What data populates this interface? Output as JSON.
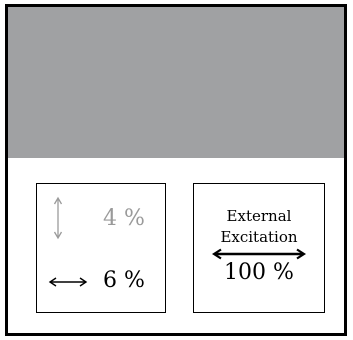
{
  "panel_left": {
    "vertical_percent": "4 %",
    "horizontal_percent": "6 %"
  },
  "panel_right": {
    "title_line1": "External",
    "title_line2": "Excitation",
    "percent": "100 %"
  },
  "colors": {
    "band": "#a0a1a3",
    "muted": "#9a9a9a",
    "ink": "#000000"
  },
  "icons": [
    "vertical-double-arrow-icon",
    "horizontal-double-arrow-icon"
  ]
}
